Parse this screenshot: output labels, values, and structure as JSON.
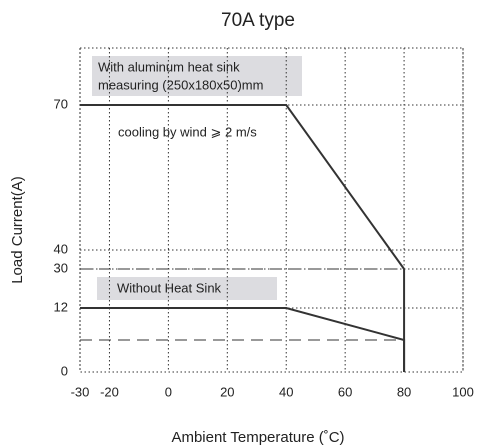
{
  "chart_data": {
    "type": "line",
    "title": "70A type",
    "x_label": "Ambient Temperature (˚C)",
    "y_label": "Load  Current(A)",
    "xlim": [
      -30,
      100
    ],
    "xticks": [
      -30,
      -20,
      0,
      20,
      40,
      60,
      80,
      100
    ],
    "ylim": [
      0,
      82
    ],
    "yticks": [
      0,
      12,
      30,
      40,
      70
    ],
    "grid": true,
    "series": [
      {
        "name": "With aluminum heat sink",
        "color": "#333333",
        "x": [
          -30,
          40,
          80,
          80
        ],
        "values": [
          70,
          70,
          30,
          0
        ]
      },
      {
        "name": "Without Heat Sink",
        "color": "#333333",
        "x": [
          -30,
          40,
          80,
          80
        ],
        "values": [
          12,
          12,
          6,
          0
        ]
      }
    ],
    "reference_lines": [
      {
        "x": [
          -30,
          80
        ],
        "values": [
          30,
          30
        ]
      },
      {
        "x": [
          -30,
          80
        ],
        "values": [
          6,
          6
        ]
      }
    ],
    "annotations": [
      "With aluminum heat sink",
      "measuring (250x180x50)mm",
      "cooling by wind ⩾ 2 m/s",
      "Without Heat Sink"
    ]
  }
}
